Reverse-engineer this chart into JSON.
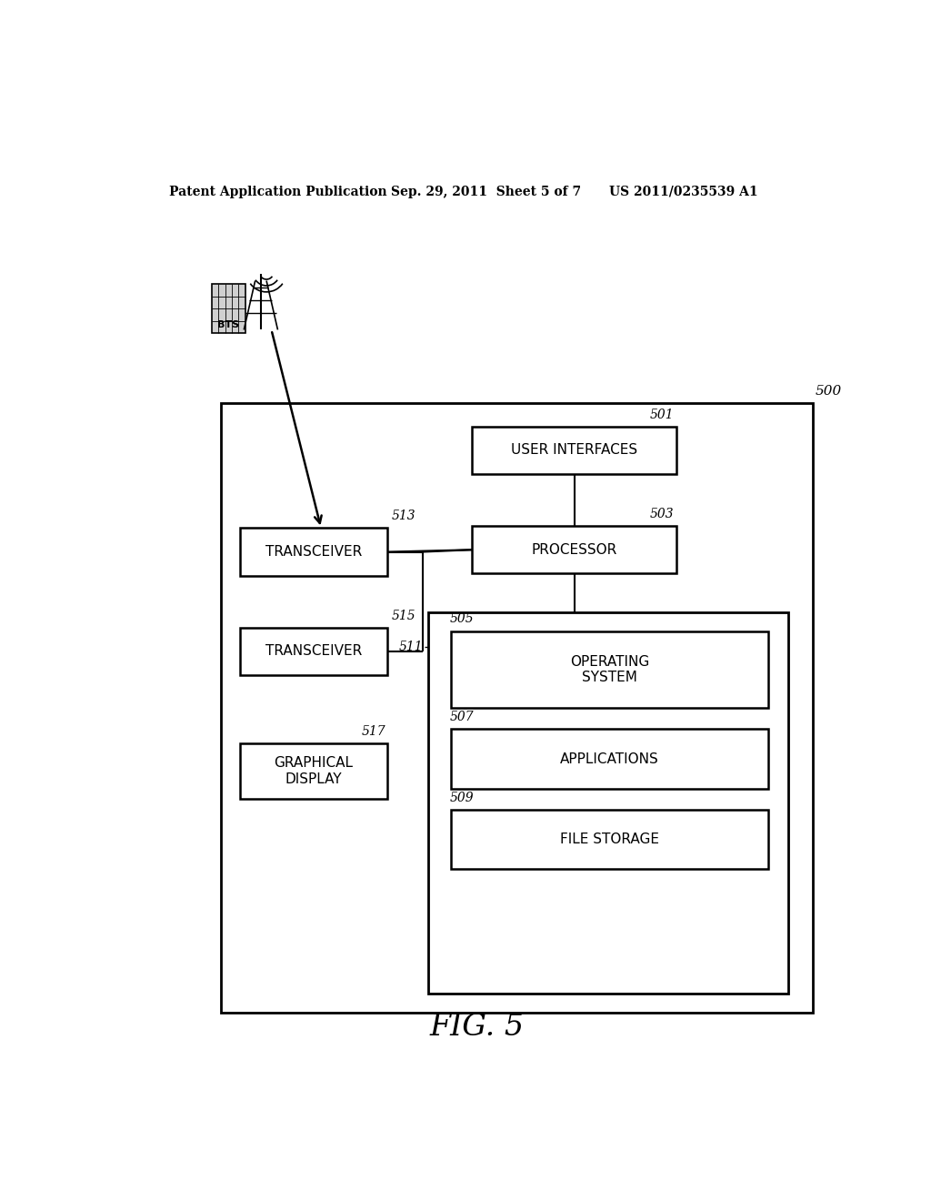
{
  "bg_color": "#ffffff",
  "header_left": "Patent Application Publication",
  "header_center": "Sep. 29, 2011  Sheet 5 of 7",
  "header_right": "US 2011/0235539 A1",
  "figure_label": "FIG. 5",
  "main_box_label": "500",
  "ui_label": "USER INTERFACES",
  "ui_ref": "501",
  "proc_label": "PROCESSOR",
  "proc_ref": "503",
  "t1_label": "TRANSCEIVER",
  "t1_ref": "513",
  "t2_label": "TRANSCEIVER",
  "t2_ref": "515",
  "gd_label": "GRAPHICAL\nDISPLAY",
  "gd_ref": "517",
  "mem_ref": "511",
  "os_label": "OPERATING\nSYSTEM",
  "os_ref": "505",
  "ap_label": "APPLICATIONS",
  "ap_ref": "507",
  "fs_label": "FILE STORAGE",
  "fs_ref": "509",
  "bts_label": "BTS"
}
